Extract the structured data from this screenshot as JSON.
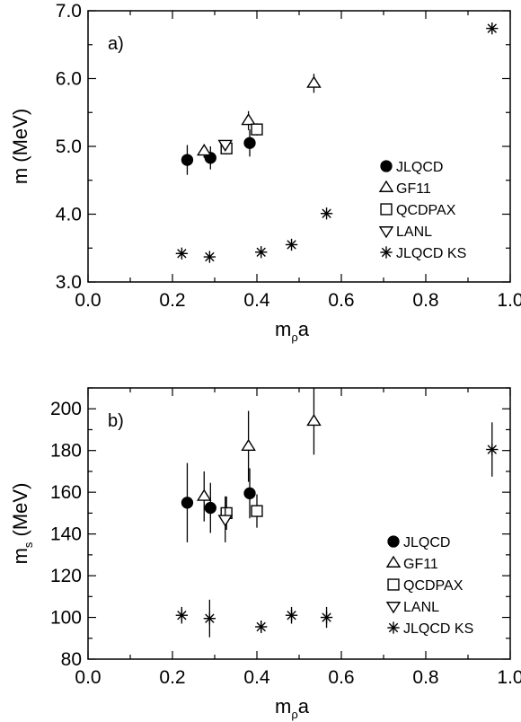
{
  "chart_data": [
    {
      "type": "scatter",
      "panel_label": "a)",
      "xlabel": "m",
      "xlabel_sub": "ρ",
      "xlabel_suffix": "a",
      "ylabel": "m (MeV)",
      "ylabel_sub": "",
      "ylabel_suffix": "",
      "xlim": [
        0.0,
        1.0
      ],
      "ylim": [
        3.0,
        7.0
      ],
      "x_ticks": [
        0.0,
        0.2,
        0.4,
        0.6,
        0.8,
        1.0
      ],
      "x_tick_labels": [
        "0.0",
        "0.2",
        "0.4",
        "0.6",
        "0.8",
        "1.0"
      ],
      "y_ticks": [
        3.0,
        4.0,
        5.0,
        6.0,
        7.0
      ],
      "y_tick_labels": [
        "3.0",
        "4.0",
        "5.0",
        "6.0",
        "7.0"
      ],
      "legend_position": "lower-right",
      "series": [
        {
          "name": "JLQCD",
          "marker": "filled-circle",
          "points": [
            {
              "x": 0.235,
              "y": 4.8,
              "err": 0.22
            },
            {
              "x": 0.29,
              "y": 4.83,
              "err": 0.17
            },
            {
              "x": 0.383,
              "y": 5.05,
              "err": 0.2
            }
          ]
        },
        {
          "name": "GF11",
          "marker": "triangle-up",
          "points": [
            {
              "x": 0.275,
              "y": 4.93,
              "err": 0.1
            },
            {
              "x": 0.38,
              "y": 5.38,
              "err": 0.14
            },
            {
              "x": 0.535,
              "y": 5.93,
              "err": 0.14
            }
          ]
        },
        {
          "name": "QCDPAX",
          "marker": "square",
          "points": [
            {
              "x": 0.328,
              "y": 4.97,
              "err": 0.09
            },
            {
              "x": 0.4,
              "y": 5.25,
              "err": 0.09
            }
          ]
        },
        {
          "name": "LANL",
          "marker": "triangle-down",
          "points": [
            {
              "x": 0.325,
              "y": 5.03,
              "err": 0.05
            }
          ]
        },
        {
          "name": "JLQCD KS",
          "marker": "asterisk",
          "points": [
            {
              "x": 0.222,
              "y": 3.42,
              "err": 0.02
            },
            {
              "x": 0.288,
              "y": 3.37,
              "err": 0.02
            },
            {
              "x": 0.41,
              "y": 3.44,
              "err": 0.02
            },
            {
              "x": 0.482,
              "y": 3.55,
              "err": 0.03
            },
            {
              "x": 0.565,
              "y": 4.01,
              "err": 0.02
            },
            {
              "x": 0.957,
              "y": 6.74,
              "err": 0.04
            }
          ]
        }
      ]
    },
    {
      "type": "scatter",
      "panel_label": "b)",
      "xlabel": "m",
      "xlabel_sub": "ρ",
      "xlabel_suffix": "a",
      "ylabel": "m",
      "ylabel_sub": "s",
      "ylabel_suffix": " (MeV)",
      "xlim": [
        0.0,
        1.0
      ],
      "ylim": [
        80,
        210
      ],
      "x_ticks": [
        0.0,
        0.2,
        0.4,
        0.6,
        0.8,
        1.0
      ],
      "x_tick_labels": [
        "0.0",
        "0.2",
        "0.4",
        "0.6",
        "0.8",
        "1.0"
      ],
      "y_ticks": [
        80,
        100,
        120,
        140,
        160,
        180,
        200
      ],
      "y_tick_labels": [
        "80",
        "100",
        "120",
        "140",
        "160",
        "180",
        "200"
      ],
      "legend_position": "lower-right",
      "series": [
        {
          "name": "JLQCD",
          "marker": "filled-circle",
          "points": [
            {
              "x": 0.235,
              "y": 155,
              "err": 19
            },
            {
              "x": 0.29,
              "y": 152.5,
              "err": 12
            },
            {
              "x": 0.383,
              "y": 159.5,
              "err": 12
            }
          ]
        },
        {
          "name": "GF11",
          "marker": "triangle-up",
          "points": [
            {
              "x": 0.275,
              "y": 158,
              "err": 12
            },
            {
              "x": 0.38,
              "y": 182,
              "err": 17
            },
            {
              "x": 0.535,
              "y": 194,
              "err": 16
            }
          ]
        },
        {
          "name": "QCDPAX",
          "marker": "square",
          "points": [
            {
              "x": 0.328,
              "y": 150,
              "err": 8
            },
            {
              "x": 0.4,
              "y": 151,
              "err": 8
            }
          ]
        },
        {
          "name": "LANL",
          "marker": "triangle-down",
          "points": [
            {
              "x": 0.325,
              "y": 147,
              "err": 11
            }
          ]
        },
        {
          "name": "JLQCD KS",
          "marker": "asterisk",
          "points": [
            {
              "x": 0.222,
              "y": 101,
              "err": 4
            },
            {
              "x": 0.288,
              "y": 99.5,
              "err": 9
            },
            {
              "x": 0.41,
              "y": 95.5,
              "err": 3
            },
            {
              "x": 0.482,
              "y": 101,
              "err": 4
            },
            {
              "x": 0.565,
              "y": 100,
              "err": 5
            },
            {
              "x": 0.957,
              "y": 180.5,
              "err": 13
            }
          ]
        }
      ]
    }
  ]
}
